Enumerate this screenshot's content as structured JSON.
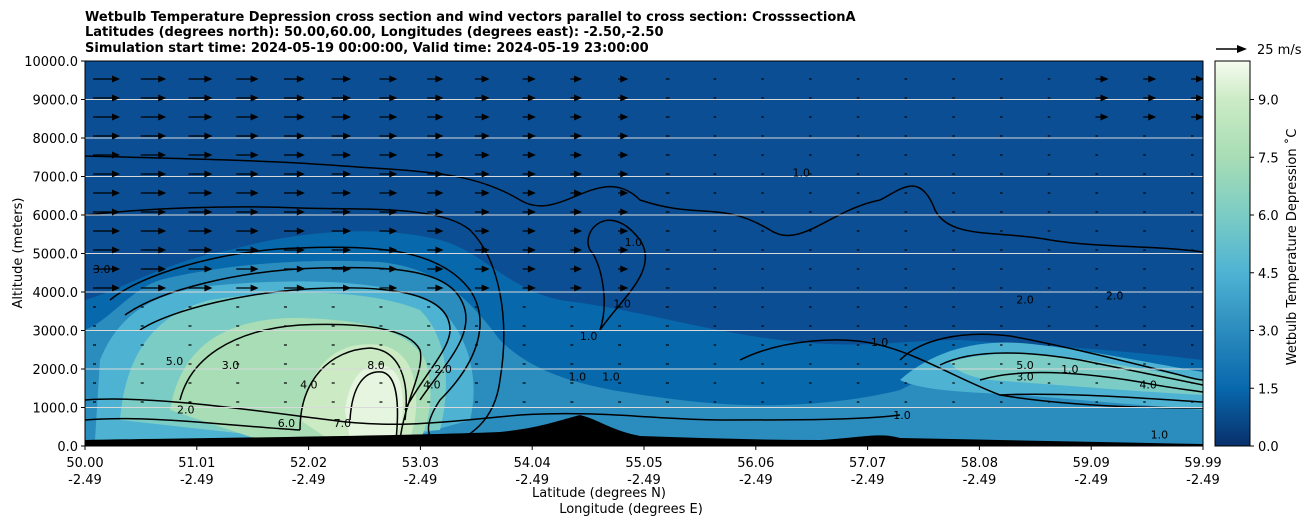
{
  "chart_data": {
    "type": "heatmap",
    "title_lines": [
      "Wetbulb Temperature Depression cross section and wind vectors parallel to cross section: CrosssectionA",
      "Latitudes (degrees north): 50.00,60.00, Longitudes (degrees east): -2.50,-2.50",
      "Simulation start time: 2024-05-19 00:00:00, Valid time: 2024-05-19 23:00:00"
    ],
    "xlabel": "Latitude (degrees N)",
    "xlabel2": "Longitude (degrees E)",
    "ylabel": "Altitude (meters)",
    "colorbar_label": "Wetbulb Temperature Depression ˚C",
    "x_ticks": [
      {
        "lat": "50.00",
        "lon": "-2.49"
      },
      {
        "lat": "51.01",
        "lon": "-2.49"
      },
      {
        "lat": "52.02",
        "lon": "-2.49"
      },
      {
        "lat": "53.03",
        "lon": "-2.49"
      },
      {
        "lat": "54.04",
        "lon": "-2.49"
      },
      {
        "lat": "55.05",
        "lon": "-2.49"
      },
      {
        "lat": "56.06",
        "lon": "-2.49"
      },
      {
        "lat": "57.07",
        "lon": "-2.49"
      },
      {
        "lat": "58.08",
        "lon": "-2.49"
      },
      {
        "lat": "59.09",
        "lon": "-2.49"
      },
      {
        "lat": "59.99",
        "lon": "-2.49"
      }
    ],
    "y_ticks": [
      "0.0",
      "1000.0",
      "2000.0",
      "3000.0",
      "4000.0",
      "5000.0",
      "6000.0",
      "7000.0",
      "8000.0",
      "9000.0",
      "10000.0"
    ],
    "ylim": [
      0,
      10000
    ],
    "xlim": [
      50.0,
      59.99
    ],
    "colorbar_ticks": [
      "0.0",
      "1.5",
      "3.0",
      "4.5",
      "6.0",
      "7.5",
      "9.0"
    ],
    "colorbar_range": [
      0,
      10
    ],
    "quiver_key": "25 m/s",
    "grid": "horizontal",
    "contour_labels": [
      {
        "text": "1.0",
        "lat": 54.9,
        "alt": 5200
      },
      {
        "text": "1.0",
        "lat": 54.8,
        "alt": 3600
      },
      {
        "text": "1.0",
        "lat": 54.5,
        "alt": 2750
      },
      {
        "text": "1.0",
        "lat": 54.4,
        "alt": 1700
      },
      {
        "text": "1.0",
        "lat": 54.7,
        "alt": 1700
      },
      {
        "text": "1.0",
        "lat": 56.4,
        "alt": 7000
      },
      {
        "text": "1.0",
        "lat": 57.1,
        "alt": 2600
      },
      {
        "text": "1.0",
        "lat": 57.3,
        "alt": 700
      },
      {
        "text": "1.0",
        "lat": 58.8,
        "alt": 1900
      },
      {
        "text": "1.0",
        "lat": 59.6,
        "alt": 200
      },
      {
        "text": "2.0",
        "lat": 58.4,
        "alt": 3700
      },
      {
        "text": "2.0",
        "lat": 59.2,
        "alt": 3800
      },
      {
        "text": "2.0",
        "lat": 53.2,
        "alt": 1900
      },
      {
        "text": "2.0",
        "lat": 50.9,
        "alt": 850
      },
      {
        "text": "3.0",
        "lat": 50.15,
        "alt": 4500
      },
      {
        "text": "3.0",
        "lat": 58.4,
        "alt": 1700
      },
      {
        "text": "3.0",
        "lat": 51.3,
        "alt": 2000
      },
      {
        "text": "4.0",
        "lat": 53.1,
        "alt": 1500
      },
      {
        "text": "4.0",
        "lat": 59.5,
        "alt": 1500
      },
      {
        "text": "4.0",
        "lat": 52.0,
        "alt": 1500
      },
      {
        "text": "5.0",
        "lat": 50.8,
        "alt": 2100
      },
      {
        "text": "5.0",
        "lat": 58.4,
        "alt": 2000
      },
      {
        "text": "6.0",
        "lat": 51.8,
        "alt": 500
      },
      {
        "text": "7.0",
        "lat": 52.3,
        "alt": 500
      },
      {
        "text": "8.0",
        "lat": 52.6,
        "alt": 2000
      }
    ]
  }
}
